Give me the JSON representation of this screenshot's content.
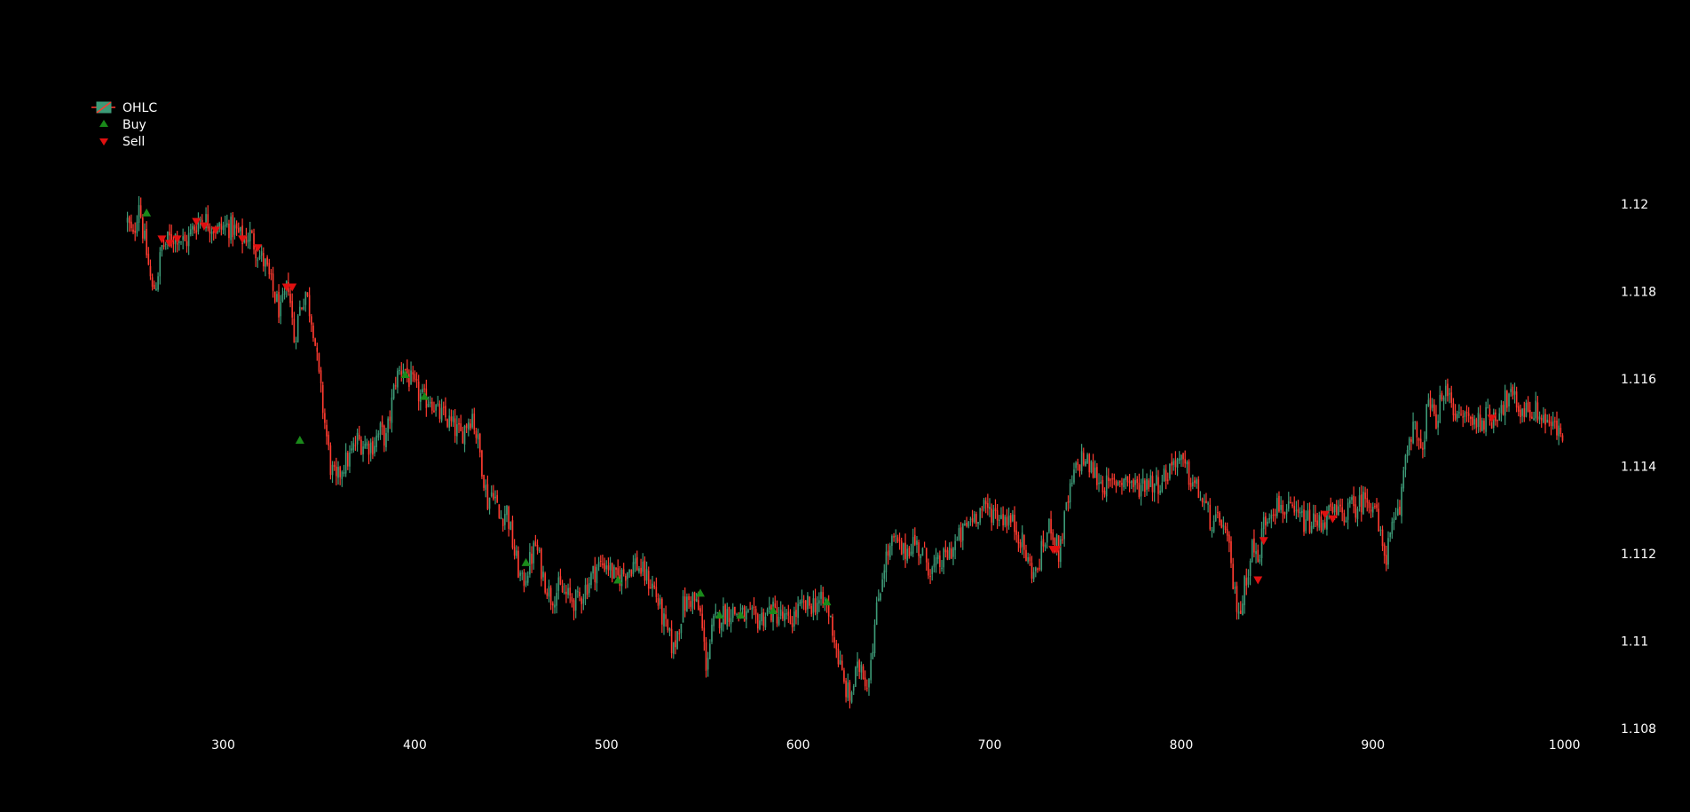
{
  "chart_data": {
    "type": "candlestick",
    "xlim": [
      215,
      1015
    ],
    "ylim": [
      1.108,
      1.1227
    ],
    "x_ticks": [
      "300",
      "400",
      "500",
      "600",
      "700",
      "800",
      "900",
      "1000"
    ],
    "y_ticks": [
      "1.108",
      "1.11",
      "1.112",
      "1.114",
      "1.116",
      "1.118",
      "1.12"
    ],
    "x_range": [
      250,
      999
    ],
    "legend_position": "top-left",
    "grid": false,
    "colors": {
      "up": "#3d9a77",
      "down": "#ff3b30",
      "buy": "#1a8a1a",
      "sell": "#e01010",
      "background": "#000000",
      "text": "#ffffff"
    },
    "close_path": [
      [
        250,
        1.1196
      ],
      [
        253,
        1.1192
      ],
      [
        256,
        1.1201
      ],
      [
        258,
        1.1194
      ],
      [
        261,
        1.1186
      ],
      [
        263,
        1.118
      ],
      [
        265,
        1.1182
      ],
      [
        268,
        1.119
      ],
      [
        272,
        1.1192
      ],
      [
        276,
        1.1193
      ],
      [
        280,
        1.1191
      ],
      [
        284,
        1.1194
      ],
      [
        288,
        1.1197
      ],
      [
        292,
        1.1196
      ],
      [
        297,
        1.1194
      ],
      [
        302,
        1.1195
      ],
      [
        306,
        1.1194
      ],
      [
        310,
        1.1192
      ],
      [
        314,
        1.1193
      ],
      [
        318,
        1.1189
      ],
      [
        322,
        1.1186
      ],
      [
        326,
        1.118
      ],
      [
        330,
        1.1175
      ],
      [
        334,
        1.1182
      ],
      [
        337,
        1.1169
      ],
      [
        340,
        1.1176
      ],
      [
        343,
        1.118
      ],
      [
        347,
        1.1172
      ],
      [
        350,
        1.116
      ],
      [
        353,
        1.115
      ],
      [
        356,
        1.114
      ],
      [
        359,
        1.1136
      ],
      [
        362,
        1.114
      ],
      [
        366,
        1.1142
      ],
      [
        370,
        1.1146
      ],
      [
        374,
        1.1145
      ],
      [
        378,
        1.1145
      ],
      [
        382,
        1.1148
      ],
      [
        385,
        1.1146
      ],
      [
        390,
        1.116
      ],
      [
        394,
        1.1163
      ],
      [
        397,
        1.116
      ],
      [
        401,
        1.1157
      ],
      [
        405,
        1.1155
      ],
      [
        408,
        1.1156
      ],
      [
        412,
        1.1152
      ],
      [
        416,
        1.1151
      ],
      [
        420,
        1.1149
      ],
      [
        424,
        1.1147
      ],
      [
        427,
        1.115
      ],
      [
        430,
        1.1152
      ],
      [
        434,
        1.1143
      ],
      [
        438,
        1.1132
      ],
      [
        441,
        1.1135
      ],
      [
        444,
        1.1128
      ],
      [
        448,
        1.113
      ],
      [
        452,
        1.112
      ],
      [
        456,
        1.1113
      ],
      [
        460,
        1.1118
      ],
      [
        463,
        1.1122
      ],
      [
        467,
        1.1115
      ],
      [
        471,
        1.111
      ],
      [
        475,
        1.1112
      ],
      [
        480,
        1.111
      ],
      [
        485,
        1.1109
      ],
      [
        490,
        1.1113
      ],
      [
        495,
        1.1117
      ],
      [
        500,
        1.1118
      ],
      [
        505,
        1.1114
      ],
      [
        510,
        1.1116
      ],
      [
        515,
        1.1118
      ],
      [
        520,
        1.1115
      ],
      [
        525,
        1.1112
      ],
      [
        530,
        1.1104
      ],
      [
        535,
        1.1098
      ],
      [
        540,
        1.1108
      ],
      [
        545,
        1.111
      ],
      [
        549,
        1.1106
      ],
      [
        552,
        1.1095
      ],
      [
        556,
        1.1104
      ],
      [
        560,
        1.1106
      ],
      [
        565,
        1.1107
      ],
      [
        570,
        1.1106
      ],
      [
        575,
        1.1105
      ],
      [
        580,
        1.1105
      ],
      [
        585,
        1.1107
      ],
      [
        590,
        1.1106
      ],
      [
        595,
        1.1104
      ],
      [
        600,
        1.1107
      ],
      [
        605,
        1.1108
      ],
      [
        610,
        1.1109
      ],
      [
        615,
        1.1108
      ],
      [
        618,
        1.1103
      ],
      [
        621,
        1.1096
      ],
      [
        624,
        1.109
      ],
      [
        627,
        1.1087
      ],
      [
        630,
        1.1092
      ],
      [
        633,
        1.1095
      ],
      [
        636,
        1.109
      ],
      [
        639,
        1.11
      ],
      [
        642,
        1.111
      ],
      [
        645,
        1.1118
      ],
      [
        650,
        1.1123
      ],
      [
        655,
        1.112
      ],
      [
        660,
        1.1123
      ],
      [
        665,
        1.112
      ],
      [
        670,
        1.1116
      ],
      [
        675,
        1.1118
      ],
      [
        680,
        1.1121
      ],
      [
        685,
        1.1124
      ],
      [
        690,
        1.1128
      ],
      [
        695,
        1.113
      ],
      [
        700,
        1.113
      ],
      [
        705,
        1.1129
      ],
      [
        710,
        1.1128
      ],
      [
        715,
        1.1125
      ],
      [
        720,
        1.1118
      ],
      [
        724,
        1.1115
      ],
      [
        728,
        1.1122
      ],
      [
        732,
        1.1127
      ],
      [
        736,
        1.112
      ],
      [
        740,
        1.113
      ],
      [
        744,
        1.1138
      ],
      [
        748,
        1.1142
      ],
      [
        752,
        1.114
      ],
      [
        757,
        1.1137
      ],
      [
        762,
        1.1135
      ],
      [
        767,
        1.1137
      ],
      [
        772,
        1.1137
      ],
      [
        777,
        1.1135
      ],
      [
        782,
        1.1137
      ],
      [
        787,
        1.1136
      ],
      [
        792,
        1.1138
      ],
      [
        797,
        1.1142
      ],
      [
        801,
        1.114
      ],
      [
        805,
        1.1137
      ],
      [
        809,
        1.1134
      ],
      [
        813,
        1.113
      ],
      [
        817,
        1.1126
      ],
      [
        821,
        1.1128
      ],
      [
        825,
        1.112
      ],
      [
        828,
        1.111
      ],
      [
        831,
        1.1107
      ],
      [
        834,
        1.1115
      ],
      [
        837,
        1.1122
      ],
      [
        840,
        1.1118
      ],
      [
        843,
        1.1127
      ],
      [
        847,
        1.1131
      ],
      [
        852,
        1.1131
      ],
      [
        857,
        1.1129
      ],
      [
        862,
        1.1128
      ],
      [
        867,
        1.1127
      ],
      [
        872,
        1.1127
      ],
      [
        877,
        1.1129
      ],
      [
        882,
        1.1129
      ],
      [
        887,
        1.113
      ],
      [
        892,
        1.1131
      ],
      [
        897,
        1.1133
      ],
      [
        901,
        1.1131
      ],
      [
        904,
        1.1123
      ],
      [
        907,
        1.112
      ],
      [
        910,
        1.1125
      ],
      [
        914,
        1.113
      ],
      [
        917,
        1.1143
      ],
      [
        921,
        1.115
      ],
      [
        925,
        1.1142
      ],
      [
        929,
        1.1155
      ],
      [
        932,
        1.115
      ],
      [
        936,
        1.1155
      ],
      [
        940,
        1.1158
      ],
      [
        944,
        1.115
      ],
      [
        948,
        1.1152
      ],
      [
        952,
        1.115
      ],
      [
        957,
        1.1151
      ],
      [
        962,
        1.1151
      ],
      [
        967,
        1.1154
      ],
      [
        972,
        1.1156
      ],
      [
        977,
        1.1153
      ],
      [
        982,
        1.1153
      ],
      [
        987,
        1.1152
      ],
      [
        992,
        1.115
      ],
      [
        996,
        1.1148
      ],
      [
        999,
        1.1147
      ]
    ],
    "series": [
      {
        "name": "OHLC"
      },
      {
        "name": "Buy",
        "points": [
          [
            260,
            1.1198
          ],
          [
            340,
            1.1146
          ],
          [
            395,
            1.1161
          ],
          [
            405,
            1.1156
          ],
          [
            458,
            1.1118
          ],
          [
            506,
            1.1114
          ],
          [
            549,
            1.1111
          ],
          [
            559,
            1.1106
          ],
          [
            570,
            1.1106
          ],
          [
            587,
            1.1107
          ],
          [
            615,
            1.1109
          ]
        ]
      },
      {
        "name": "Sell",
        "points": [
          [
            268,
            1.1192
          ],
          [
            272,
            1.1191
          ],
          [
            276,
            1.1192
          ],
          [
            286,
            1.1196
          ],
          [
            290,
            1.1195
          ],
          [
            296,
            1.1194
          ],
          [
            310,
            1.1192
          ],
          [
            318,
            1.119
          ],
          [
            333,
            1.1181
          ],
          [
            336,
            1.1181
          ],
          [
            733,
            1.1121
          ],
          [
            735,
            1.1121
          ],
          [
            840,
            1.1114
          ],
          [
            843,
            1.1123
          ],
          [
            875,
            1.1129
          ],
          [
            879,
            1.1128
          ],
          [
            962,
            1.1151
          ]
        ]
      }
    ]
  },
  "legend": {
    "items": [
      {
        "label": "OHLC",
        "icon": "candlestick-icon"
      },
      {
        "label": "Buy",
        "icon": "triangle-up-icon"
      },
      {
        "label": "Sell",
        "icon": "triangle-down-icon"
      }
    ]
  }
}
